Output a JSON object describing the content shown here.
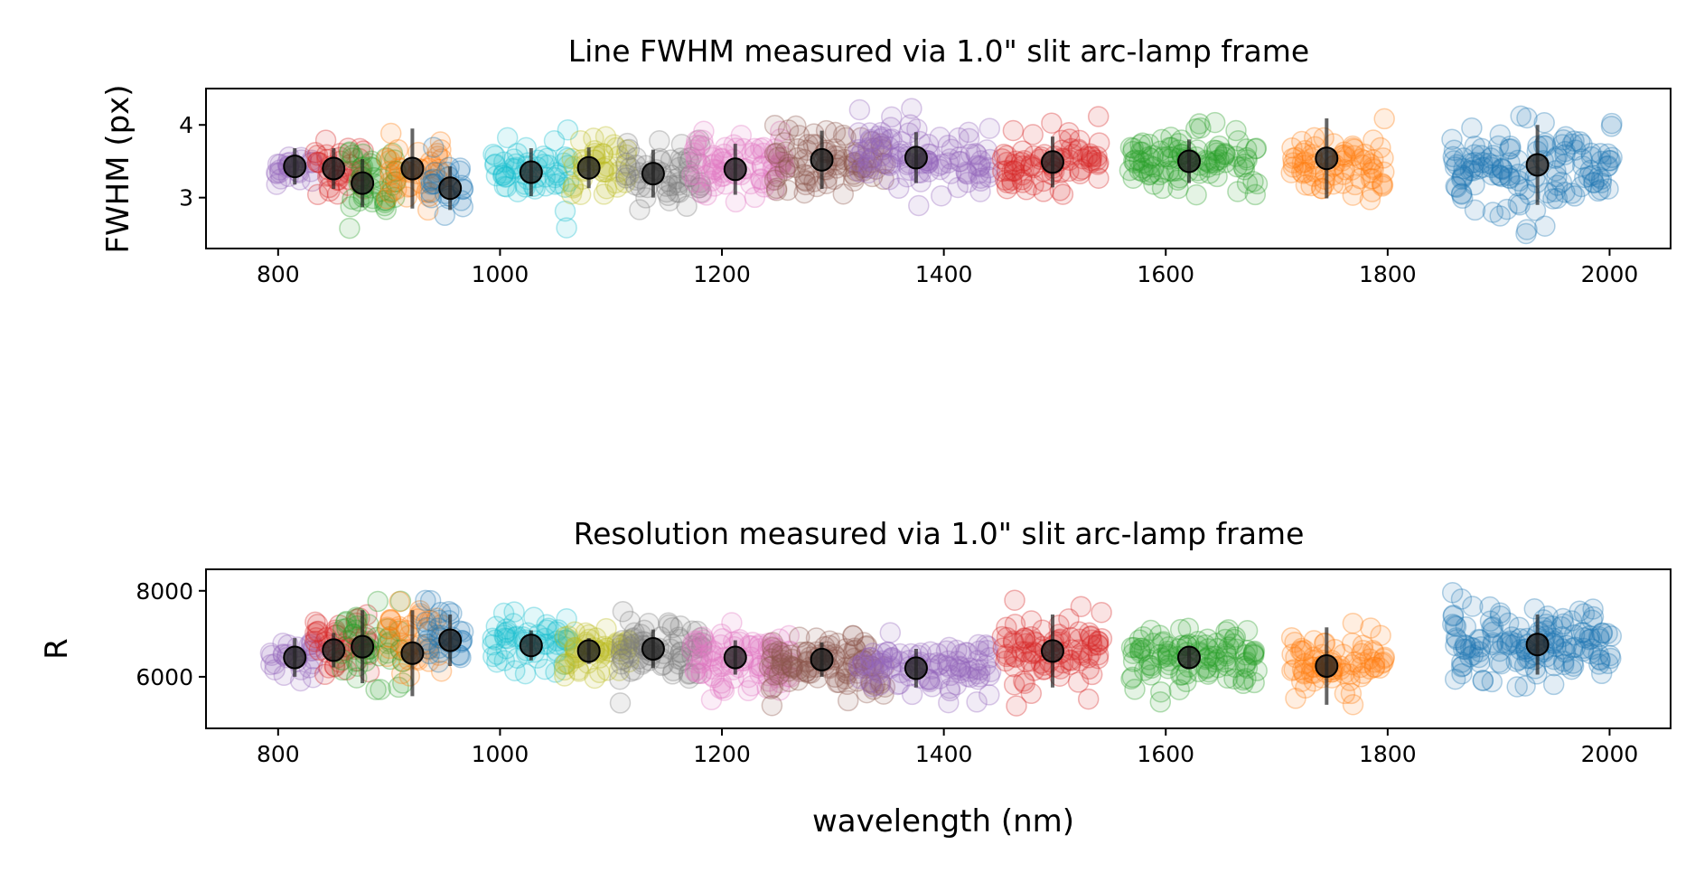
{
  "chart_data": [
    {
      "id": "fwhm",
      "type": "scatter",
      "title": "Line FWHM measured via 1.0\" slit arc-lamp frame",
      "xlabel": "",
      "ylabel": "FWHM (px)",
      "xlim": [
        735,
        2055
      ],
      "ylim": [
        2.3,
        4.5
      ],
      "xticks": [
        800,
        1000,
        1200,
        1400,
        1600,
        1800,
        2000
      ],
      "yticks": [
        3,
        4
      ],
      "grid": false,
      "groups": [
        {
          "color": "#9467bd",
          "x": [
            800,
            830
          ],
          "center": 3.4,
          "spread": 0.25
        },
        {
          "color": "#d62728",
          "x": [
            835,
            875
          ],
          "center": 3.4,
          "spread": 0.35
        },
        {
          "color": "#2ca02c",
          "x": [
            865,
            905
          ],
          "center": 3.2,
          "spread": 0.5
        },
        {
          "color": "#ff7f0e",
          "x": [
            900,
            945
          ],
          "center": 3.3,
          "spread": 0.45
        },
        {
          "color": "#1f77b4",
          "x": [
            940,
            965
          ],
          "center": 3.2,
          "spread": 0.35
        },
        {
          "color": "#17becf",
          "x": [
            995,
            1060
          ],
          "center": 3.35,
          "spread": 0.4
        },
        {
          "color": "#bcbd22",
          "x": [
            1065,
            1115
          ],
          "center": 3.45,
          "spread": 0.35
        },
        {
          "color": "#7f7f7f",
          "x": [
            1115,
            1180
          ],
          "center": 3.35,
          "spread": 0.4
        },
        {
          "color": "#e377c2",
          "x": [
            1175,
            1255
          ],
          "center": 3.4,
          "spread": 0.4
        },
        {
          "color": "#8c564b",
          "x": [
            1250,
            1345
          ],
          "center": 3.5,
          "spread": 0.4
        },
        {
          "color": "#9467bd",
          "x": [
            1325,
            1440
          ],
          "center": 3.55,
          "spread": 0.4
        },
        {
          "color": "#d62728",
          "x": [
            1455,
            1540
          ],
          "center": 3.5,
          "spread": 0.4
        },
        {
          "color": "#2ca02c",
          "x": [
            1570,
            1680
          ],
          "center": 3.5,
          "spread": 0.4
        },
        {
          "color": "#ff7f0e",
          "x": [
            1715,
            1795
          ],
          "center": 3.4,
          "spread": 0.45
        },
        {
          "color": "#1f77b4",
          "x": [
            1860,
            2000
          ],
          "center": 3.4,
          "spread": 0.55
        }
      ],
      "means": [
        {
          "x": 815,
          "y": 3.43,
          "err": 0.25
        },
        {
          "x": 850,
          "y": 3.4,
          "err": 0.28
        },
        {
          "x": 876,
          "y": 3.2,
          "err": 0.33
        },
        {
          "x": 921,
          "y": 3.4,
          "err": 0.55
        },
        {
          "x": 955,
          "y": 3.13,
          "err": 0.3
        },
        {
          "x": 1028,
          "y": 3.35,
          "err": 0.33
        },
        {
          "x": 1080,
          "y": 3.41,
          "err": 0.28
        },
        {
          "x": 1138,
          "y": 3.33,
          "err": 0.33
        },
        {
          "x": 1212,
          "y": 3.39,
          "err": 0.35
        },
        {
          "x": 1290,
          "y": 3.52,
          "err": 0.4
        },
        {
          "x": 1375,
          "y": 3.55,
          "err": 0.35
        },
        {
          "x": 1498,
          "y": 3.49,
          "err": 0.35
        },
        {
          "x": 1621,
          "y": 3.5,
          "err": 0.3
        },
        {
          "x": 1745,
          "y": 3.54,
          "err": 0.55
        },
        {
          "x": 1935,
          "y": 3.45,
          "err": 0.55
        }
      ]
    },
    {
      "id": "resolution",
      "type": "scatter",
      "title": "Resolution measured via 1.0\" slit arc-lamp frame",
      "xlabel": "wavelength (nm)",
      "ylabel": "R",
      "xlim": [
        735,
        2055
      ],
      "ylim": [
        4800,
        8500
      ],
      "xticks": [
        800,
        1000,
        1200,
        1400,
        1600,
        1800,
        2000
      ],
      "yticks": [
        6000,
        8000
      ],
      "grid": false,
      "groups": [
        {
          "color": "#9467bd",
          "x": [
            795,
            830
          ],
          "center": 6400,
          "spread": 500
        },
        {
          "color": "#d62728",
          "x": [
            835,
            880
          ],
          "center": 6700,
          "spread": 700
        },
        {
          "color": "#2ca02c",
          "x": [
            860,
            910
          ],
          "center": 6700,
          "spread": 900
        },
        {
          "color": "#ff7f0e",
          "x": [
            900,
            945
          ],
          "center": 6700,
          "spread": 800
        },
        {
          "color": "#1f77b4",
          "x": [
            935,
            965
          ],
          "center": 6900,
          "spread": 700
        },
        {
          "color": "#17becf",
          "x": [
            995,
            1060
          ],
          "center": 6800,
          "spread": 600
        },
        {
          "color": "#bcbd22",
          "x": [
            1060,
            1115
          ],
          "center": 6600,
          "spread": 500
        },
        {
          "color": "#7f7f7f",
          "x": [
            1110,
            1180
          ],
          "center": 6600,
          "spread": 700
        },
        {
          "color": "#e377c2",
          "x": [
            1175,
            1260
          ],
          "center": 6400,
          "spread": 600
        },
        {
          "color": "#8c564b",
          "x": [
            1245,
            1345
          ],
          "center": 6300,
          "spread": 600
        },
        {
          "color": "#9467bd",
          "x": [
            1325,
            1440
          ],
          "center": 6200,
          "spread": 600
        },
        {
          "color": "#d62728",
          "x": [
            1455,
            1540
          ],
          "center": 6500,
          "spread": 800
        },
        {
          "color": "#2ca02c",
          "x": [
            1570,
            1680
          ],
          "center": 6450,
          "spread": 600
        },
        {
          "color": "#ff7f0e",
          "x": [
            1715,
            1795
          ],
          "center": 6200,
          "spread": 700
        },
        {
          "color": "#1f77b4",
          "x": [
            1860,
            2000
          ],
          "center": 6700,
          "spread": 800
        }
      ],
      "means": [
        {
          "x": 815,
          "y": 6450,
          "err": 450
        },
        {
          "x": 850,
          "y": 6620,
          "err": 400
        },
        {
          "x": 876,
          "y": 6700,
          "err": 850
        },
        {
          "x": 921,
          "y": 6550,
          "err": 1000
        },
        {
          "x": 955,
          "y": 6850,
          "err": 600
        },
        {
          "x": 1028,
          "y": 6730,
          "err": 350
        },
        {
          "x": 1080,
          "y": 6600,
          "err": 300
        },
        {
          "x": 1138,
          "y": 6650,
          "err": 450
        },
        {
          "x": 1212,
          "y": 6450,
          "err": 400
        },
        {
          "x": 1290,
          "y": 6400,
          "err": 400
        },
        {
          "x": 1375,
          "y": 6200,
          "err": 450
        },
        {
          "x": 1498,
          "y": 6600,
          "err": 850
        },
        {
          "x": 1621,
          "y": 6450,
          "err": 250
        },
        {
          "x": 1745,
          "y": 6250,
          "err": 900
        },
        {
          "x": 1935,
          "y": 6750,
          "err": 700
        }
      ]
    }
  ]
}
